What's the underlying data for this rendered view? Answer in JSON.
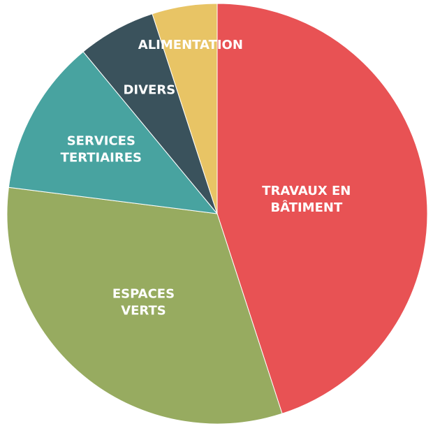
{
  "chart_data": {
    "type": "pie",
    "categories": [
      "TRAVAUX EN BÂTIMENT",
      "ESPACES VERTS",
      "SERVICES TERTIAIRES",
      "DIVERS",
      "ALIMENTATION"
    ],
    "values": [
      45,
      32,
      12,
      6,
      5
    ],
    "colors": [
      "#e85254",
      "#97ab60",
      "#48a3a0",
      "#3a525c",
      "#e8c465"
    ]
  }
}
